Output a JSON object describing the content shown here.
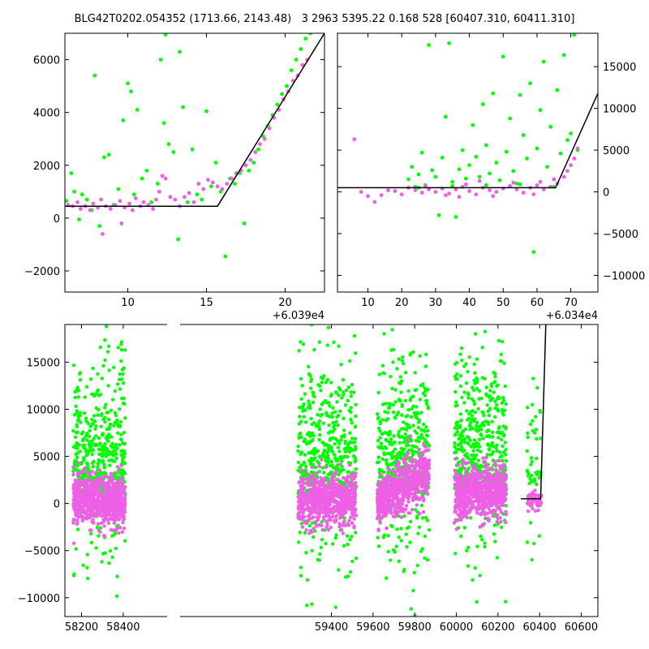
{
  "title": "BLG42T0202.054352 (1713.66, 2143.48)   3 2963 5395.22 0.168 528 [60407.310, 60411.310]",
  "colors": {
    "background": "#ffffff",
    "series_a": "#00ff00",
    "series_b": "#ee5fe6",
    "model": "#000000",
    "frame": "#000000"
  },
  "chart_data": [
    {
      "type": "scatter",
      "panel": "top-left",
      "title": "",
      "xlabel": "",
      "ylabel": "",
      "x_offset_text": "+6.039e4",
      "xlim": [
        6,
        22.5
      ],
      "ylim": [
        -2800,
        7000
      ],
      "x_ticks": [
        10,
        15,
        20
      ],
      "y_ticks": [
        -2000,
        0,
        2000,
        4000,
        6000
      ],
      "y_axis_side": "left",
      "grid": false,
      "legend": "none",
      "series": [
        {
          "color": "#00ff00",
          "points": [
            [
              6.1,
              650
            ],
            [
              6.4,
              1700
            ],
            [
              6.6,
              1000
            ],
            [
              6.9,
              -50
            ],
            [
              7.1,
              900
            ],
            [
              7.4,
              700
            ],
            [
              7.7,
              300
            ],
            [
              7.9,
              5400
            ],
            [
              8.2,
              -300
            ],
            [
              8.5,
              2300
            ],
            [
              8.8,
              2400
            ],
            [
              9.1,
              500
            ],
            [
              9.4,
              1100
            ],
            [
              9.7,
              3700
            ],
            [
              10.0,
              5100
            ],
            [
              10.2,
              4800
            ],
            [
              10.4,
              900
            ],
            [
              10.6,
              4100
            ],
            [
              10.9,
              1500
            ],
            [
              11.2,
              1800
            ],
            [
              11.5,
              600
            ],
            [
              11.9,
              1300
            ],
            [
              12.3,
              3600
            ],
            [
              12.6,
              2800
            ],
            [
              12.9,
              2500
            ],
            [
              13.2,
              -800
            ],
            [
              13.5,
              4200
            ],
            [
              13.8,
              600
            ],
            [
              14.1,
              2600
            ],
            [
              14.4,
              900
            ],
            [
              14.7,
              700
            ],
            [
              15.0,
              4050
            ],
            [
              15.3,
              1200
            ],
            [
              15.6,
              2100
            ],
            [
              15.9,
              1000
            ],
            [
              16.2,
              -1450
            ],
            [
              16.5,
              1500
            ],
            [
              16.8,
              1300
            ],
            [
              17.1,
              1700
            ],
            [
              17.4,
              -200
            ],
            [
              17.7,
              1800
            ],
            [
              18.0,
              2100
            ],
            [
              18.3,
              2600
            ],
            [
              18.6,
              3100
            ],
            [
              18.9,
              3500
            ],
            [
              19.2,
              3900
            ],
            [
              19.5,
              4300
            ],
            [
              19.8,
              4700
            ],
            [
              20.1,
              5000
            ],
            [
              20.4,
              5600
            ],
            [
              20.7,
              6000
            ],
            [
              21.0,
              6400
            ],
            [
              21.3,
              6800
            ],
            [
              21.6,
              7000
            ],
            [
              12.1,
              6000
            ],
            [
              13.3,
              6300
            ],
            [
              12.4,
              6950
            ]
          ]
        },
        {
          "color": "#ee5fe6",
          "points": [
            [
              6.2,
              500
            ],
            [
              6.5,
              450
            ],
            [
              6.8,
              600
            ],
            [
              7.0,
              350
            ],
            [
              7.3,
              450
            ],
            [
              7.6,
              300
            ],
            [
              7.8,
              550
            ],
            [
              8.1,
              400
            ],
            [
              8.3,
              700
            ],
            [
              8.6,
              450
            ],
            [
              8.9,
              350
            ],
            [
              9.2,
              500
            ],
            [
              9.5,
              650
            ],
            [
              9.8,
              400
            ],
            [
              10.1,
              550
            ],
            [
              10.3,
              300
            ],
            [
              10.5,
              750
            ],
            [
              10.8,
              450
            ],
            [
              11.0,
              600
            ],
            [
              11.3,
              500
            ],
            [
              11.6,
              350
            ],
            [
              11.8,
              700
            ],
            [
              12.0,
              1000
            ],
            [
              12.2,
              1600
            ],
            [
              12.4,
              1500
            ],
            [
              12.7,
              800
            ],
            [
              13.0,
              700
            ],
            [
              13.3,
              450
            ],
            [
              13.6,
              800
            ],
            [
              13.9,
              950
            ],
            [
              14.2,
              600
            ],
            [
              14.5,
              1300
            ],
            [
              14.8,
              1100
            ],
            [
              15.1,
              1450
            ],
            [
              15.4,
              1350
            ],
            [
              15.7,
              1200
            ],
            [
              16.0,
              1100
            ],
            [
              16.3,
              1300
            ],
            [
              16.6,
              1500
            ],
            [
              16.9,
              1700
            ],
            [
              17.2,
              1800
            ],
            [
              17.5,
              2000
            ],
            [
              17.8,
              2200
            ],
            [
              18.1,
              2500
            ],
            [
              18.4,
              2800
            ],
            [
              18.7,
              3000
            ],
            [
              19.0,
              3400
            ],
            [
              19.3,
              3800
            ],
            [
              19.6,
              4100
            ],
            [
              19.9,
              4500
            ],
            [
              20.2,
              4800
            ],
            [
              20.5,
              5200
            ],
            [
              20.8,
              5400
            ],
            [
              21.1,
              5800
            ],
            [
              21.4,
              6000
            ],
            [
              8.4,
              -600
            ],
            [
              9.6,
              -200
            ]
          ]
        },
        {
          "color": "#000000",
          "mode": "line",
          "points": [
            [
              6,
              450
            ],
            [
              15.7,
              450
            ],
            [
              22.5,
              7000
            ]
          ]
        }
      ]
    },
    {
      "type": "scatter",
      "panel": "top-right",
      "title": "",
      "xlabel": "",
      "ylabel": "",
      "x_offset_text": "+6.034e4",
      "xlim": [
        1,
        78
      ],
      "ylim": [
        -12000,
        19000
      ],
      "x_ticks": [
        10,
        20,
        30,
        40,
        50,
        60,
        70
      ],
      "y_ticks": [
        -10000,
        -5000,
        0,
        5000,
        10000,
        15000
      ],
      "y_axis_side": "right",
      "grid": false,
      "legend": "none",
      "series": [
        {
          "color": "#00ff00",
          "points": [
            [
              22,
              1500
            ],
            [
              23,
              3000
            ],
            [
              24,
              600
            ],
            [
              25,
              2100
            ],
            [
              26,
              4700
            ],
            [
              27,
              800
            ],
            [
              28,
              17600
            ],
            [
              29,
              2600
            ],
            [
              30,
              1800
            ],
            [
              31,
              -2800
            ],
            [
              32,
              4100
            ],
            [
              33,
              9000
            ],
            [
              34,
              17800
            ],
            [
              35,
              1200
            ],
            [
              36,
              -3000
            ],
            [
              37,
              2700
            ],
            [
              38,
              5000
            ],
            [
              39,
              1600
            ],
            [
              40,
              3200
            ],
            [
              41,
              8000
            ],
            [
              42,
              4200
            ],
            [
              43,
              1800
            ],
            [
              44,
              10500
            ],
            [
              45,
              5600
            ],
            [
              46,
              2200
            ],
            [
              47,
              11800
            ],
            [
              48,
              3500
            ],
            [
              49,
              1400
            ],
            [
              50,
              16200
            ],
            [
              51,
              4800
            ],
            [
              52,
              8800
            ],
            [
              53,
              2500
            ],
            [
              54,
              1000
            ],
            [
              55,
              11600
            ],
            [
              56,
              6800
            ],
            [
              57,
              4000
            ],
            [
              58,
              13000
            ],
            [
              59,
              -7200
            ],
            [
              60,
              5200
            ],
            [
              61,
              9800
            ],
            [
              62,
              15600
            ],
            [
              63,
              3000
            ],
            [
              64,
              7800
            ],
            [
              65,
              1500
            ],
            [
              66,
              12200
            ],
            [
              67,
              4600
            ],
            [
              68,
              16400
            ],
            [
              69,
              6200
            ],
            [
              70,
              7000
            ],
            [
              71,
              18800
            ],
            [
              72,
              5000
            ],
            [
              35,
              700
            ],
            [
              45,
              800
            ],
            [
              55,
              900
            ],
            [
              25,
              500
            ],
            [
              65,
              600
            ]
          ]
        },
        {
          "color": "#ee5fe6",
          "points": [
            [
              6,
              6300
            ],
            [
              8,
              0
            ],
            [
              10,
              -500
            ],
            [
              12,
              -1200
            ],
            [
              14,
              -400
            ],
            [
              16,
              200
            ],
            [
              18,
              100
            ],
            [
              20,
              -300
            ],
            [
              22,
              500
            ],
            [
              24,
              200
            ],
            [
              26,
              -100
            ],
            [
              28,
              300
            ],
            [
              30,
              0
            ],
            [
              32,
              400
            ],
            [
              34,
              -200
            ],
            [
              36,
              300
            ],
            [
              38,
              600
            ],
            [
              40,
              100
            ],
            [
              42,
              -300
            ],
            [
              44,
              500
            ],
            [
              46,
              200
            ],
            [
              48,
              0
            ],
            [
              50,
              400
            ],
            [
              52,
              700
            ],
            [
              54,
              300
            ],
            [
              56,
              -100
            ],
            [
              58,
              500
            ],
            [
              60,
              800
            ],
            [
              62,
              300
            ],
            [
              64,
              600
            ],
            [
              66,
              1000
            ],
            [
              68,
              1800
            ],
            [
              69,
              2500
            ],
            [
              70,
              3200
            ],
            [
              71,
              4000
            ],
            [
              72,
              5200
            ],
            [
              27,
              700
            ],
            [
              33,
              -400
            ],
            [
              39,
              900
            ],
            [
              47,
              -500
            ],
            [
              53,
              1100
            ],
            [
              59,
              -300
            ],
            [
              61,
              1200
            ],
            [
              65,
              1500
            ],
            [
              43,
              1300
            ],
            [
              37,
              -600
            ]
          ]
        },
        {
          "color": "#000000",
          "mode": "line",
          "points": [
            [
              1,
              500
            ],
            [
              65.5,
              500
            ],
            [
              78,
              11800
            ]
          ]
        }
      ]
    },
    {
      "type": "scatter",
      "panel": "bottom",
      "title": "",
      "xlabel": "",
      "ylabel": "",
      "xlim": [
        58120,
        60680
      ],
      "ylim": [
        -12000,
        19000
      ],
      "x_ticks": [
        58200,
        58400,
        59400,
        59600,
        59800,
        60000,
        60200,
        60400,
        60600
      ],
      "y_ticks": [
        -10000,
        -5000,
        0,
        5000,
        10000,
        15000
      ],
      "y_axis_side": "left",
      "grid": false,
      "legend": "none",
      "seasons": [
        [
          58160,
          58410
        ],
        [
          59240,
          59520
        ],
        [
          59620,
          59870
        ],
        [
          59990,
          60240
        ],
        [
          60340,
          60410
        ]
      ],
      "series": [
        {
          "color": "#00ff00",
          "name": "",
          "points": []
        },
        {
          "color": "#ee5fe6",
          "name": "",
          "points": []
        },
        {
          "color": "#000000",
          "mode": "line",
          "points": [
            [
              60310,
              500
            ],
            [
              60405,
              500
            ],
            [
              60430,
              19000
            ]
          ]
        }
      ]
    }
  ]
}
